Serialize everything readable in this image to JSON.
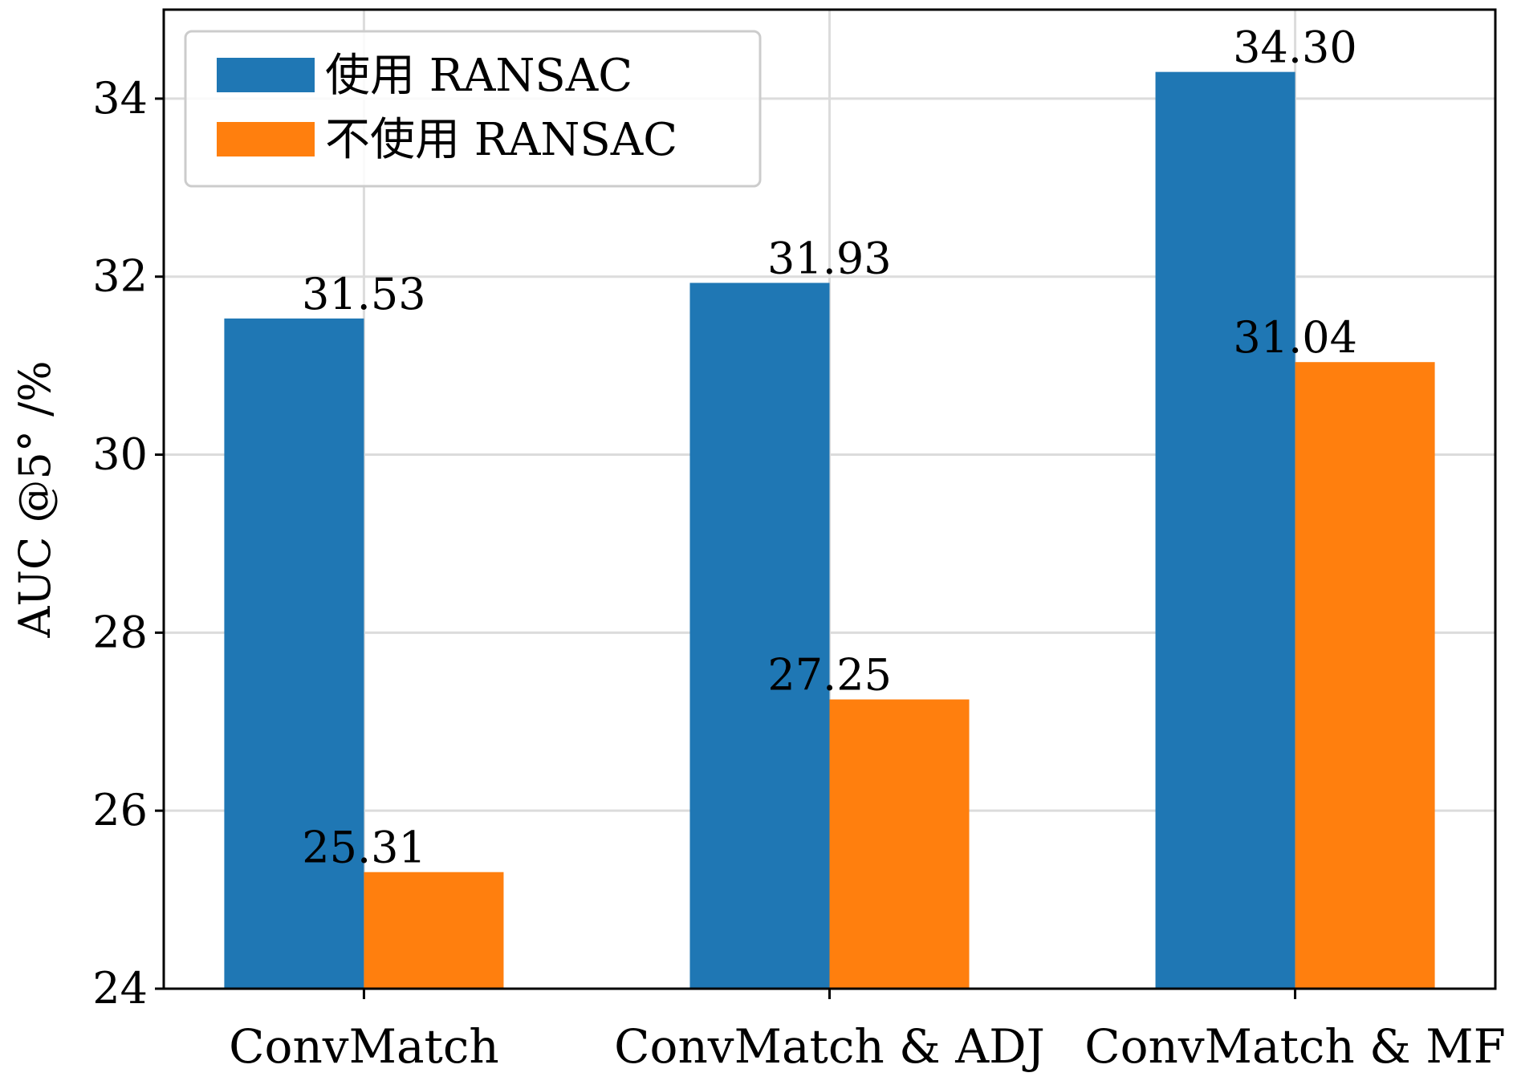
{
  "chart_data": {
    "type": "bar",
    "title": "",
    "xlabel": "",
    "ylabel": "AUC @5° /%",
    "categories": [
      "ConvMatch",
      "ConvMatch & ADJ",
      "ConvMatch & MF"
    ],
    "series": [
      {
        "name": "使用 RANSAC",
        "values": [
          31.53,
          31.93,
          34.3
        ],
        "labels": [
          "31.53",
          "31.93",
          "34.30"
        ],
        "color": "#1f77b4"
      },
      {
        "name": "不使用 RANSAC",
        "values": [
          25.31,
          27.25,
          31.04
        ],
        "labels": [
          "25.31",
          "27.25",
          "31.04"
        ],
        "color": "#ff7f0e"
      }
    ],
    "ylim": [
      24,
      35
    ],
    "yticks": [
      24,
      26,
      28,
      30,
      32,
      34
    ],
    "ytick_labels": [
      "24",
      "26",
      "28",
      "30",
      "32",
      "34"
    ],
    "grid": true,
    "legend_position": "top-left"
  }
}
